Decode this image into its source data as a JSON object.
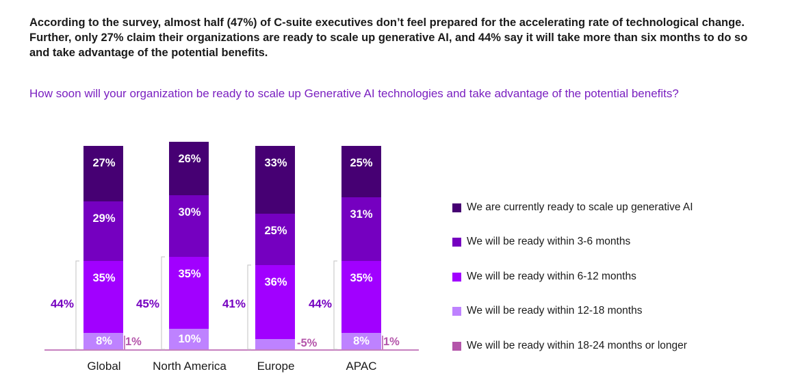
{
  "intro": "According to the survey, almost half (47%) of C-suite executives don’t feel prepared for the accelerating rate of technological change. Further, only 27% claim their organizations are ready to scale up generative AI, and 44% say it will take more than six months to do so and take advantage of the potential benefits.",
  "question": "How soon will your organization be ready to scale up Generative AI technologies and take advantage of the potential benefits?",
  "chart_data": {
    "type": "bar",
    "stacked": true,
    "categories": [
      "Global",
      "North America",
      "Europe",
      "APAC"
    ],
    "series": [
      {
        "name": "We are currently ready to scale up generative AI",
        "color": "#460073",
        "values": [
          27,
          26,
          33,
          25
        ],
        "labels": [
          "27%",
          "26%",
          "33%",
          "25%"
        ]
      },
      {
        "name": "We will be ready within 3-6 months",
        "color": "#7500c0",
        "values": [
          29,
          30,
          25,
          31
        ],
        "labels": [
          "29%",
          "30%",
          "25%",
          "31%"
        ]
      },
      {
        "name": "We will be ready within 6-12 months",
        "color": "#a100ff",
        "values": [
          35,
          35,
          36,
          35
        ],
        "labels": [
          "35%",
          "35%",
          "36%",
          "35%"
        ]
      },
      {
        "name": "We will be ready within 12-18 months",
        "color": "#be82ff",
        "values": [
          8,
          10,
          5,
          8
        ],
        "labels": [
          "8%",
          "10%",
          "5%",
          "8%"
        ]
      },
      {
        "name": "We will be ready within 18-24 months or longer",
        "color": "#b455aa",
        "values": [
          1,
          0,
          0,
          1
        ],
        "labels": [
          "1%",
          "",
          "",
          "1%"
        ]
      }
    ],
    "brackets": [
      "44%",
      "45%",
      "41%",
      "44%"
    ],
    "legend_position": "right",
    "grid": false
  }
}
